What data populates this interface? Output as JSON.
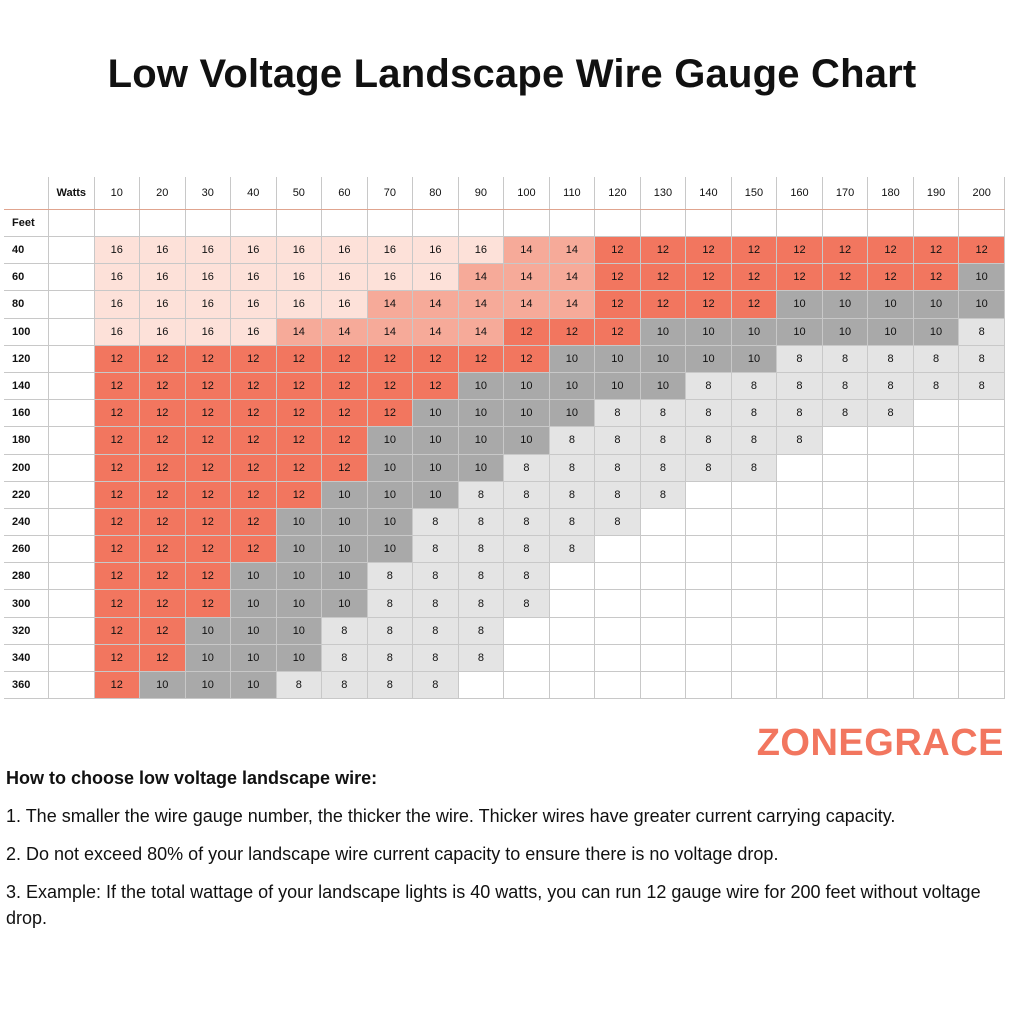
{
  "title": "Low Voltage Landscape Wire Gauge Chart",
  "brand": "ZONEGRACE",
  "colors": {
    "12": "#f2765f",
    "14": "#f6aa99",
    "16": "#fde1d9",
    "10": "#a9a9a9",
    "8": "#e4e4e4"
  },
  "chart_data": {
    "type": "table",
    "watts_label": "Watts",
    "feet_label": "Feet",
    "watts": [
      10,
      20,
      30,
      40,
      50,
      60,
      70,
      80,
      90,
      100,
      110,
      120,
      130,
      140,
      150,
      160,
      170,
      180,
      190,
      200
    ],
    "rows": [
      {
        "feet": 40,
        "gauges": [
          16,
          16,
          16,
          16,
          16,
          16,
          16,
          16,
          16,
          14,
          14,
          12,
          12,
          12,
          12,
          12,
          12,
          12,
          12,
          12
        ]
      },
      {
        "feet": 60,
        "gauges": [
          16,
          16,
          16,
          16,
          16,
          16,
          16,
          16,
          14,
          14,
          14,
          12,
          12,
          12,
          12,
          12,
          12,
          12,
          12,
          10
        ]
      },
      {
        "feet": 80,
        "gauges": [
          16,
          16,
          16,
          16,
          16,
          16,
          14,
          14,
          14,
          14,
          14,
          12,
          12,
          12,
          12,
          10,
          10,
          10,
          10,
          10
        ]
      },
      {
        "feet": 100,
        "gauges": [
          16,
          16,
          16,
          16,
          14,
          14,
          14,
          14,
          14,
          12,
          12,
          12,
          10,
          10,
          10,
          10,
          10,
          10,
          10,
          8
        ]
      },
      {
        "feet": 120,
        "gauges": [
          12,
          12,
          12,
          12,
          12,
          12,
          12,
          12,
          12,
          12,
          10,
          10,
          10,
          10,
          10,
          8,
          8,
          8,
          8,
          8
        ]
      },
      {
        "feet": 140,
        "gauges": [
          12,
          12,
          12,
          12,
          12,
          12,
          12,
          12,
          10,
          10,
          10,
          10,
          10,
          8,
          8,
          8,
          8,
          8,
          8,
          8
        ]
      },
      {
        "feet": 160,
        "gauges": [
          12,
          12,
          12,
          12,
          12,
          12,
          12,
          10,
          10,
          10,
          10,
          8,
          8,
          8,
          8,
          8,
          8,
          8,
          null,
          null
        ]
      },
      {
        "feet": 180,
        "gauges": [
          12,
          12,
          12,
          12,
          12,
          12,
          10,
          10,
          10,
          10,
          8,
          8,
          8,
          8,
          8,
          8,
          null,
          null,
          null,
          null
        ]
      },
      {
        "feet": 200,
        "gauges": [
          12,
          12,
          12,
          12,
          12,
          12,
          10,
          10,
          10,
          8,
          8,
          8,
          8,
          8,
          8,
          null,
          null,
          null,
          null,
          null
        ]
      },
      {
        "feet": 220,
        "gauges": [
          12,
          12,
          12,
          12,
          12,
          10,
          10,
          10,
          8,
          8,
          8,
          8,
          8,
          null,
          null,
          null,
          null,
          null,
          null,
          null
        ]
      },
      {
        "feet": 240,
        "gauges": [
          12,
          12,
          12,
          12,
          10,
          10,
          10,
          8,
          8,
          8,
          8,
          8,
          null,
          null,
          null,
          null,
          null,
          null,
          null,
          null
        ]
      },
      {
        "feet": 260,
        "gauges": [
          12,
          12,
          12,
          12,
          10,
          10,
          10,
          8,
          8,
          8,
          8,
          null,
          null,
          null,
          null,
          null,
          null,
          null,
          null,
          null
        ]
      },
      {
        "feet": 280,
        "gauges": [
          12,
          12,
          12,
          10,
          10,
          10,
          8,
          8,
          8,
          8,
          null,
          null,
          null,
          null,
          null,
          null,
          null,
          null,
          null,
          null
        ]
      },
      {
        "feet": 300,
        "gauges": [
          12,
          12,
          12,
          10,
          10,
          10,
          8,
          8,
          8,
          8,
          null,
          null,
          null,
          null,
          null,
          null,
          null,
          null,
          null,
          null
        ]
      },
      {
        "feet": 320,
        "gauges": [
          12,
          12,
          10,
          10,
          10,
          8,
          8,
          8,
          8,
          null,
          null,
          null,
          null,
          null,
          null,
          null,
          null,
          null,
          null,
          null
        ]
      },
      {
        "feet": 340,
        "gauges": [
          12,
          12,
          10,
          10,
          10,
          8,
          8,
          8,
          8,
          null,
          null,
          null,
          null,
          null,
          null,
          null,
          null,
          null,
          null,
          null
        ]
      },
      {
        "feet": 360,
        "gauges": [
          12,
          10,
          10,
          10,
          8,
          8,
          8,
          8,
          null,
          null,
          null,
          null,
          null,
          null,
          null,
          null,
          null,
          null,
          null,
          null
        ]
      }
    ]
  },
  "guide": {
    "heading": "How to choose low voltage landscape wire:",
    "points": [
      "1. The smaller the wire gauge number, the thicker the wire. Thicker wires have greater current carrying capacity.",
      "2. Do not exceed 80% of your landscape wire current capacity to ensure there is no voltage drop.",
      "3. Example: If the total wattage of your landscape lights is 40 watts, you can run 12 gauge wire for 200 feet without voltage drop."
    ]
  }
}
